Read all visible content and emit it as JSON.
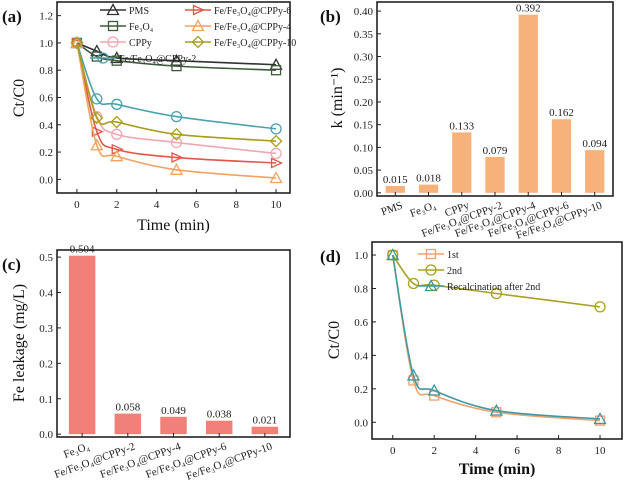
{
  "chart_data": [
    {
      "panel": "(a)",
      "type": "line",
      "xlabel": "Time (min)",
      "ylabel": "Ct/C0",
      "xlim": [
        -1,
        10.7
      ],
      "ylim": [
        -0.1,
        1.3
      ],
      "xticks": [
        0,
        2,
        4,
        6,
        8,
        10
      ],
      "yticks": [
        0.0,
        0.2,
        0.4,
        0.6,
        0.8,
        1.0,
        1.2
      ],
      "legend_position": "top",
      "x": [
        0,
        1,
        2,
        5,
        10
      ],
      "series": [
        {
          "name": "PMS",
          "marker": "triangle",
          "color": "#333333",
          "values": [
            1.0,
            0.94,
            0.89,
            0.87,
            0.84
          ]
        },
        {
          "name": "Fe₃O₄",
          "marker": "square",
          "color": "#3d5a3a",
          "values": [
            1.0,
            0.9,
            0.87,
            0.83,
            0.8
          ]
        },
        {
          "name": "CPPy",
          "marker": "circle",
          "color": "#f2a7b2",
          "values": [
            1.0,
            0.46,
            0.33,
            0.27,
            0.19
          ]
        },
        {
          "name": "Fe/Fe₃O₄@CPPy-2",
          "marker": "circle",
          "color": "#4aa2ad",
          "values": [
            1.0,
            0.59,
            0.55,
            0.46,
            0.37
          ]
        },
        {
          "name": "Fe/Fe₃O₄@CPPy-6",
          "marker": "triangle-right",
          "color": "#e0584a",
          "values": [
            1.0,
            0.35,
            0.22,
            0.16,
            0.12
          ]
        },
        {
          "name": "Fe/Fe₃O₄@CPPy-4",
          "marker": "triangle",
          "color": "#f3a25e",
          "values": [
            1.0,
            0.25,
            0.17,
            0.07,
            0.01
          ]
        },
        {
          "name": "Fe/Fe₃O₄@CPPy-10",
          "marker": "diamond",
          "color": "#a89e1c",
          "values": [
            1.0,
            0.45,
            0.42,
            0.33,
            0.28
          ]
        }
      ]
    },
    {
      "panel": "(b)",
      "type": "bar",
      "ylabel": "k (min⁻¹)",
      "ylim": [
        -0.007,
        0.42
      ],
      "yticks": [
        "0.00",
        "0.05",
        "0.10",
        "0.15",
        "0.20",
        "0.25",
        "0.30",
        "0.35",
        "0.40"
      ],
      "color": "#f6b27a",
      "categories": [
        "PMS",
        "Fe₃O₄",
        "CPPy",
        "Fe/Fe₃O₄@CPPy-2",
        "Fe/Fe₃O₄@CPPy-4",
        "Fe/Fe₃O₄@CPPy-6",
        "Fe/Fe₃O₄@CPPy-10"
      ],
      "values": [
        0.015,
        0.018,
        0.133,
        0.079,
        0.392,
        0.162,
        0.094
      ],
      "data_labels": [
        "0.015",
        "0.018",
        "0.133",
        "0.079",
        "0.392",
        "0.162",
        "0.094"
      ]
    },
    {
      "panel": "(c)",
      "type": "bar",
      "ylabel": "Fe leakage (mg/L)",
      "ylim": [
        -0.008,
        0.52
      ],
      "yticks": [
        "0.0",
        "0.1",
        "0.2",
        "0.3",
        "0.4",
        "0.5"
      ],
      "color": "#f08078",
      "categories": [
        "Fe₃O₄",
        "Fe/Fe₃O₄@CPPy-2",
        "Fe/Fe₃O₄@CPPy-4",
        "Fe/Fe₃O₄@CPPy-6",
        "Fe/Fe₃O₄@CPPy-10"
      ],
      "values": [
        0.504,
        0.058,
        0.049,
        0.038,
        0.021
      ],
      "data_labels": [
        "0.504",
        "0.058",
        "0.049",
        "0.038",
        "0.021"
      ]
    },
    {
      "panel": "(d)",
      "type": "line",
      "xlabel": "Time (min)",
      "ylabel": "Ct/C0",
      "xlim": [
        -1,
        11.06
      ],
      "ylim": [
        -0.1,
        1.078
      ],
      "xticks": [
        0,
        2,
        4,
        6,
        8,
        10
      ],
      "yticks": [
        0.0,
        0.2,
        0.4,
        0.6,
        0.8,
        1.0
      ],
      "legend_position": "top-right",
      "x": [
        0,
        1,
        2,
        5,
        10
      ],
      "series": [
        {
          "name": "1st",
          "marker": "square",
          "color": "#f3a06a",
          "values": [
            1.0,
            0.25,
            0.16,
            0.06,
            0.01
          ]
        },
        {
          "name": "2nd",
          "marker": "circle",
          "color": "#a8a020",
          "values": [
            1.0,
            0.83,
            0.82,
            0.77,
            0.69
          ]
        },
        {
          "name": "Recalcination after 2nd",
          "marker": "triangle",
          "color": "#3f9aa5",
          "values": [
            1.0,
            0.28,
            0.19,
            0.07,
            0.02
          ]
        }
      ]
    }
  ]
}
